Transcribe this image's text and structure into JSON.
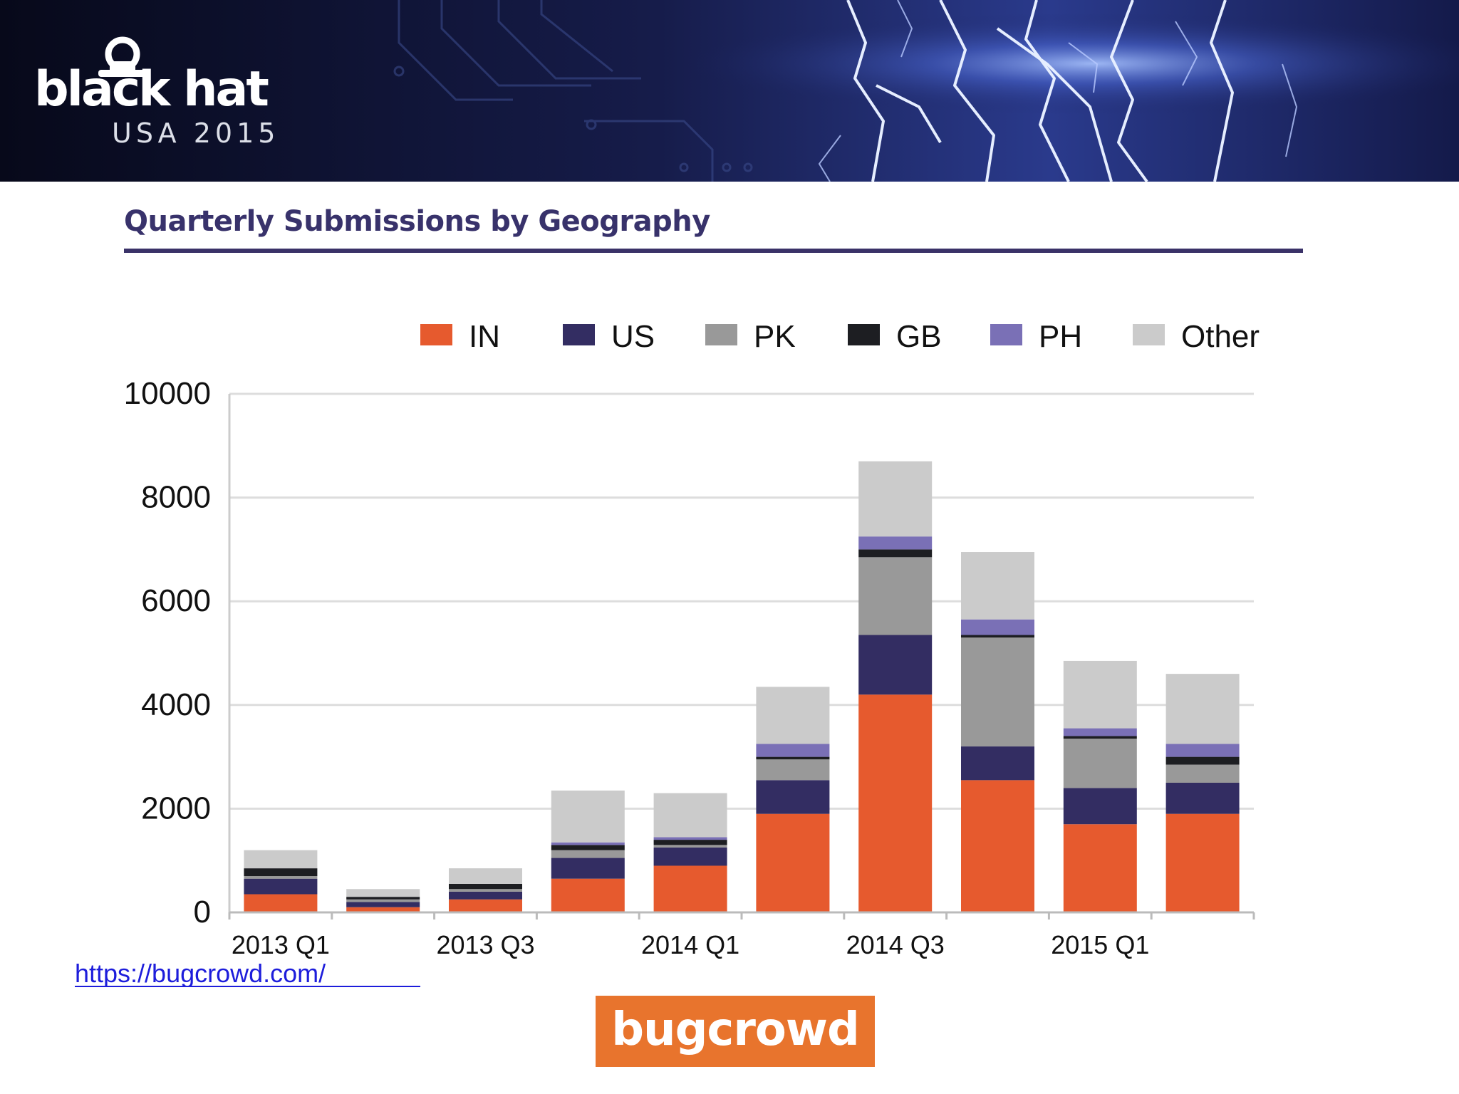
{
  "header": {
    "brand": "black hat",
    "event": "USA 2015"
  },
  "slide": {
    "title": "Quarterly Submissions by Geography",
    "footer_link": "https://bugcrowd.com/",
    "footer_logo": "bugcrowd"
  },
  "colors": {
    "IN": "#e65a2e",
    "US": "#332d62",
    "PK": "#999999",
    "GB": "#1d1e22",
    "PH": "#7a70b6",
    "Other": "#cbcbcb",
    "title": "#38326b",
    "brand_orange": "#e8742d"
  },
  "chart_data": {
    "type": "bar",
    "stacked": true,
    "title": "",
    "xlabel": "",
    "ylabel": "",
    "ylim": [
      0,
      10000
    ],
    "yticks": [
      "0",
      "2000",
      "4000",
      "6000",
      "8000",
      "10000"
    ],
    "ytick_values": [
      0,
      2000,
      4000,
      6000,
      8000,
      10000
    ],
    "categories": [
      "2013 Q1",
      "2013 Q2",
      "2013 Q3",
      "2013 Q4",
      "2014 Q1",
      "2014 Q2",
      "2014 Q3",
      "2014 Q4",
      "2015 Q1",
      "2015 Q2"
    ],
    "xtick_labels": [
      "2013 Q1",
      "",
      "2013 Q3",
      "",
      "2014 Q1",
      "",
      "2014 Q3",
      "",
      "2015 Q1",
      ""
    ],
    "grid": true,
    "legend_position": "top",
    "series": [
      {
        "name": "IN",
        "values": [
          350,
          100,
          250,
          650,
          900,
          1900,
          4200,
          2550,
          1700,
          1900
        ]
      },
      {
        "name": "US",
        "values": [
          300,
          100,
          150,
          400,
          350,
          650,
          1150,
          650,
          700,
          600
        ]
      },
      {
        "name": "PK",
        "values": [
          50,
          50,
          50,
          150,
          50,
          400,
          1500,
          2100,
          950,
          350
        ]
      },
      {
        "name": "GB",
        "values": [
          150,
          50,
          100,
          100,
          100,
          50,
          150,
          50,
          50,
          150
        ]
      },
      {
        "name": "PH",
        "values": [
          0,
          0,
          0,
          50,
          50,
          250,
          250,
          300,
          150,
          250
        ]
      },
      {
        "name": "Other",
        "values": [
          350,
          150,
          300,
          1000,
          850,
          1100,
          1450,
          1300,
          1300,
          1350
        ]
      }
    ]
  }
}
